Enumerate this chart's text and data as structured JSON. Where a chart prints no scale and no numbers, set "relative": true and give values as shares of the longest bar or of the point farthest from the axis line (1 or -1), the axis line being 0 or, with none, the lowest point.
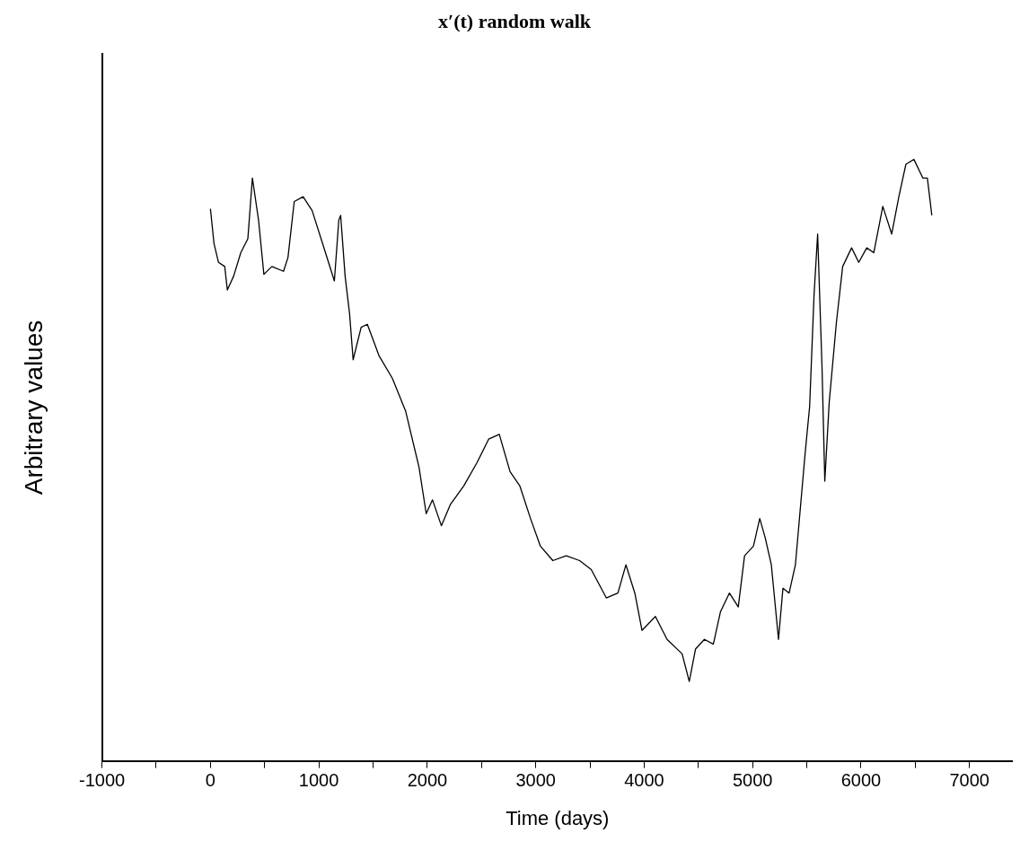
{
  "chart_data": {
    "type": "line",
    "title": "x′(t) random walk",
    "xlabel": "Time (days)",
    "ylabel": "Arbitrary values",
    "relative": true,
    "grid": false,
    "legend": false,
    "marker": "none",
    "line_style": "solid",
    "xlim": [
      -1000,
      7400
    ],
    "xticks": [
      -1000,
      {
        "value": -500,
        "label": null
      },
      0,
      {
        "value": 500,
        "label": null
      },
      1000,
      {
        "value": 1500,
        "label": null
      },
      2000,
      {
        "value": 2500,
        "label": null
      },
      3000,
      {
        "value": 3500,
        "label": null
      },
      4000,
      {
        "value": 4500,
        "label": null
      },
      5000,
      {
        "value": 5500,
        "label": null
      },
      6000,
      {
        "value": 6500,
        "label": null
      },
      7000
    ],
    "series": [
      {
        "color": "#000000",
        "x": [
          0,
          33,
          74,
          132,
          156,
          214,
          280,
          345,
          387,
          444,
          493,
          567,
          674,
          715,
          773,
          855,
          938,
          1061,
          1143,
          1184,
          1201,
          1242,
          1283,
          1316,
          1390,
          1447,
          1554,
          1678,
          1801,
          1924,
          1990,
          2048,
          2130,
          2212,
          2336,
          2459,
          2566,
          2664,
          2763,
          2854,
          2952,
          3043,
          3158,
          3281,
          3405,
          3512,
          3651,
          3758,
          3832,
          3914,
          3980,
          4104,
          4211,
          4350,
          4416,
          4474,
          4556,
          4638,
          4704,
          4786,
          4868,
          4926,
          5008,
          5066,
          5115,
          5173,
          5239,
          5280,
          5337,
          5395,
          5436,
          5485,
          5526,
          5567,
          5600,
          5641,
          5666,
          5707,
          5773,
          5831,
          5913,
          5979,
          6053,
          6118,
          6201,
          6283,
          6349,
          6414,
          6488,
          6571,
          6612,
          6653
        ],
        "values": [
          0.918,
          0.86,
          0.829,
          0.822,
          0.783,
          0.806,
          0.845,
          0.868,
          0.969,
          0.899,
          0.809,
          0.822,
          0.814,
          0.837,
          0.93,
          0.938,
          0.915,
          0.845,
          0.798,
          0.899,
          0.907,
          0.806,
          0.744,
          0.667,
          0.721,
          0.726,
          0.674,
          0.636,
          0.581,
          0.488,
          0.411,
          0.434,
          0.391,
          0.426,
          0.457,
          0.496,
          0.535,
          0.543,
          0.481,
          0.457,
          0.403,
          0.357,
          0.333,
          0.341,
          0.333,
          0.318,
          0.271,
          0.279,
          0.326,
          0.279,
          0.217,
          0.24,
          0.202,
          0.178,
          0.132,
          0.186,
          0.202,
          0.194,
          0.248,
          0.279,
          0.256,
          0.341,
          0.357,
          0.403,
          0.372,
          0.326,
          0.202,
          0.287,
          0.279,
          0.326,
          0.411,
          0.512,
          0.589,
          0.775,
          0.876,
          0.651,
          0.465,
          0.597,
          0.729,
          0.822,
          0.853,
          0.829,
          0.853,
          0.845,
          0.922,
          0.876,
          0.938,
          0.992,
          1,
          0.969,
          0.969,
          0.907
        ]
      }
    ]
  }
}
